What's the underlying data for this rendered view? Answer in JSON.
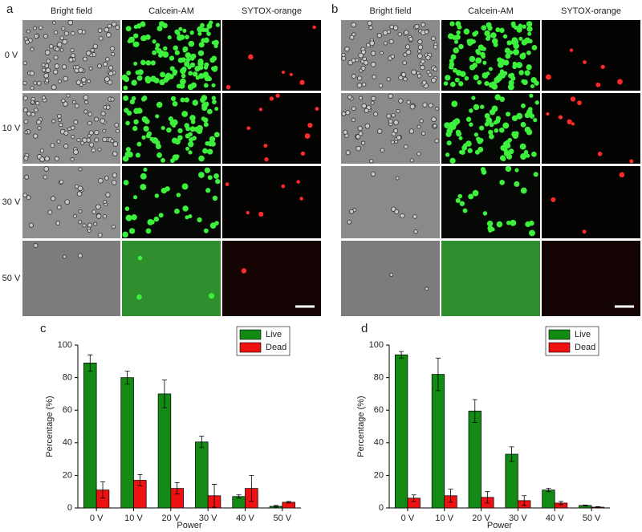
{
  "panels": [
    {
      "label": "a",
      "columns": [
        "Bright field",
        "Calcein-AM",
        "SYTOX-orange"
      ],
      "rows": [
        "0 V",
        "10 V",
        "30 V",
        "50 V"
      ]
    },
    {
      "label": "b",
      "columns": [
        "Bright field",
        "Calcein-AM",
        "SYTOX-orange"
      ],
      "rows": []
    }
  ],
  "chart_data": [
    {
      "type": "bar",
      "panel_label": "c",
      "xlabel": "Power",
      "ylabel": "Percentage (%)",
      "categories": [
        "0 V",
        "10 V",
        "20 V",
        "30 V",
        "40 V",
        "50 V"
      ],
      "series": [
        {
          "name": "Live",
          "color": "#138a13",
          "values": [
            89,
            80,
            70,
            40.5,
            7,
            1
          ],
          "errors": [
            5,
            4,
            8.5,
            3.5,
            1,
            0.5
          ]
        },
        {
          "name": "Dead",
          "color": "#ee1111",
          "values": [
            11,
            17,
            12,
            7.5,
            12,
            3.5
          ],
          "errors": [
            5,
            3.5,
            3.5,
            7,
            8,
            0.5
          ]
        }
      ],
      "ylim": [
        0,
        100
      ],
      "yticks": [
        0,
        20,
        40,
        60,
        80,
        100
      ],
      "legend": "upper right"
    },
    {
      "type": "bar",
      "panel_label": "d",
      "xlabel": "Power",
      "ylabel": "Percentage (%)",
      "categories": [
        "0 V",
        "10 V",
        "20 V",
        "30 V",
        "40 V",
        "50 V"
      ],
      "series": [
        {
          "name": "Live",
          "color": "#138a13",
          "values": [
            94,
            82,
            59.5,
            33,
            11,
            1.5
          ],
          "errors": [
            2,
            10,
            7,
            4.5,
            1,
            0.3
          ]
        },
        {
          "name": "Dead",
          "color": "#ee1111",
          "values": [
            6,
            7.5,
            6.5,
            4.5,
            3,
            0.5
          ],
          "errors": [
            2,
            4,
            3.5,
            3,
            1,
            0.3
          ]
        }
      ],
      "ylim": [
        0,
        100
      ],
      "yticks": [
        0,
        20,
        40,
        60,
        80,
        100
      ],
      "legend": "upper right"
    }
  ]
}
